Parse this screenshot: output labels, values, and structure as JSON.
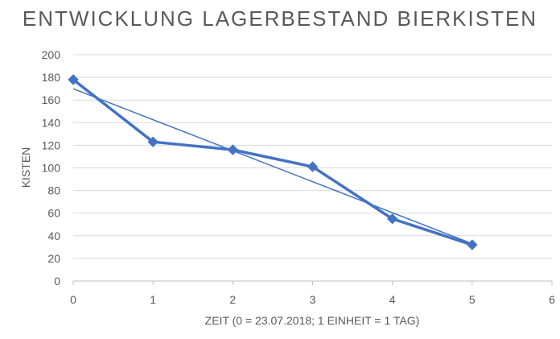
{
  "chart_data": {
    "type": "scatter",
    "title": "ENTWICKLUNG LAGERBESTAND BIERKISTEN",
    "xlabel": "ZEIT (0 = 23.07.2018; 1 EINHEIT = 1 TAG)",
    "ylabel": "KISTEN",
    "xlim": [
      0,
      6
    ],
    "ylim": [
      0,
      200
    ],
    "xticks": [
      0,
      1,
      2,
      3,
      4,
      5,
      6
    ],
    "yticks": [
      0,
      20,
      40,
      60,
      80,
      100,
      120,
      140,
      160,
      180,
      200
    ],
    "grid": true,
    "color": "#4472c4",
    "series": [
      {
        "x": [
          0,
          1,
          2,
          3,
          4,
          5
        ],
        "y": [
          178,
          123,
          116,
          101,
          55,
          32
        ],
        "marker": "diamond",
        "lines": true
      }
    ],
    "trendline": {
      "type": "linear",
      "x": [
        0,
        5
      ],
      "y": [
        170,
        33
      ]
    }
  }
}
